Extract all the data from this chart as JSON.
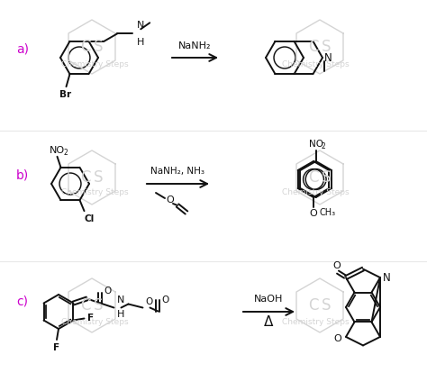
{
  "bg_color": "#ffffff",
  "label_color": "#cc00cc",
  "lc": "#111111",
  "wc": "#d4d4d4",
  "lw": 1.4,
  "reagent_a": "NaNH₂",
  "reagent_b": "NaNH₂, NH₃",
  "reagent_c": "NaOH",
  "delta": "Δ"
}
